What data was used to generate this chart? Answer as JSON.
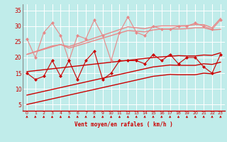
{
  "xlabel": "Vent moyen/en rafales ( km/h )",
  "bg_color": "#c0ecea",
  "grid_color": "#ffffff",
  "x_values": [
    0,
    1,
    2,
    3,
    4,
    5,
    6,
    7,
    8,
    9,
    10,
    11,
    12,
    13,
    14,
    15,
    16,
    17,
    18,
    19,
    20,
    21,
    22,
    23
  ],
  "ylim": [
    3,
    37
  ],
  "yticks": [
    5,
    10,
    15,
    20,
    25,
    30,
    35
  ],
  "line_light_scatter": [
    26,
    20,
    28,
    31,
    27,
    19,
    27,
    26,
    32,
    27,
    19,
    28,
    33,
    28,
    27,
    30,
    29,
    29,
    30,
    30,
    31,
    30,
    29,
    32
  ],
  "line_light_trend1": [
    21,
    21.9,
    22.8,
    23.7,
    24.1,
    23.5,
    24.4,
    25.3,
    26.2,
    27.1,
    28.0,
    28.9,
    29.8,
    29.5,
    29.2,
    29.8,
    30.1,
    30.1,
    30.1,
    30.2,
    30.5,
    30.5,
    29.5,
    32.5
  ],
  "line_light_trend2": [
    21,
    21.8,
    22.6,
    23.4,
    24.2,
    23.0,
    23.8,
    24.6,
    25.4,
    26.2,
    27.0,
    27.8,
    28.6,
    28.4,
    28.2,
    28.8,
    29.1,
    29.1,
    29.1,
    29.2,
    29.5,
    29.5,
    28.8,
    29.0
  ],
  "line_dark_scatter": [
    15,
    13,
    14,
    19,
    14,
    19,
    13,
    19,
    22,
    13,
    15,
    19,
    19,
    19,
    18,
    21,
    19,
    21,
    18,
    20,
    20,
    17,
    15,
    21
  ],
  "line_dark_trend_upper": [
    15.5,
    15.8,
    16.1,
    16.4,
    16.7,
    17.0,
    17.3,
    17.6,
    17.9,
    18.2,
    18.5,
    18.8,
    19.1,
    19.4,
    19.7,
    20.0,
    20.2,
    20.4,
    20.6,
    20.5,
    20.5,
    20.8,
    20.7,
    21.5
  ],
  "line_dark_trend_mid": [
    8,
    8.6,
    9.2,
    9.8,
    10.4,
    11.0,
    11.6,
    12.2,
    12.8,
    13.4,
    14.0,
    14.6,
    15.2,
    15.8,
    16.4,
    17.0,
    17.3,
    17.6,
    17.5,
    17.5,
    17.5,
    18.0,
    17.8,
    18.5
  ],
  "line_dark_trend_bot": [
    5,
    5.6,
    6.2,
    6.8,
    7.4,
    8.0,
    8.6,
    9.2,
    9.8,
    10.4,
    11.0,
    11.6,
    12.2,
    12.8,
    13.4,
    14.0,
    14.3,
    14.6,
    14.5,
    14.5,
    14.5,
    15.0,
    14.8,
    15.5
  ],
  "color_light": "#e88888",
  "color_dark": "#cc0000",
  "marker": "D",
  "marker_size": 2.5,
  "lw_scatter": 0.8,
  "lw_trend": 1.0
}
